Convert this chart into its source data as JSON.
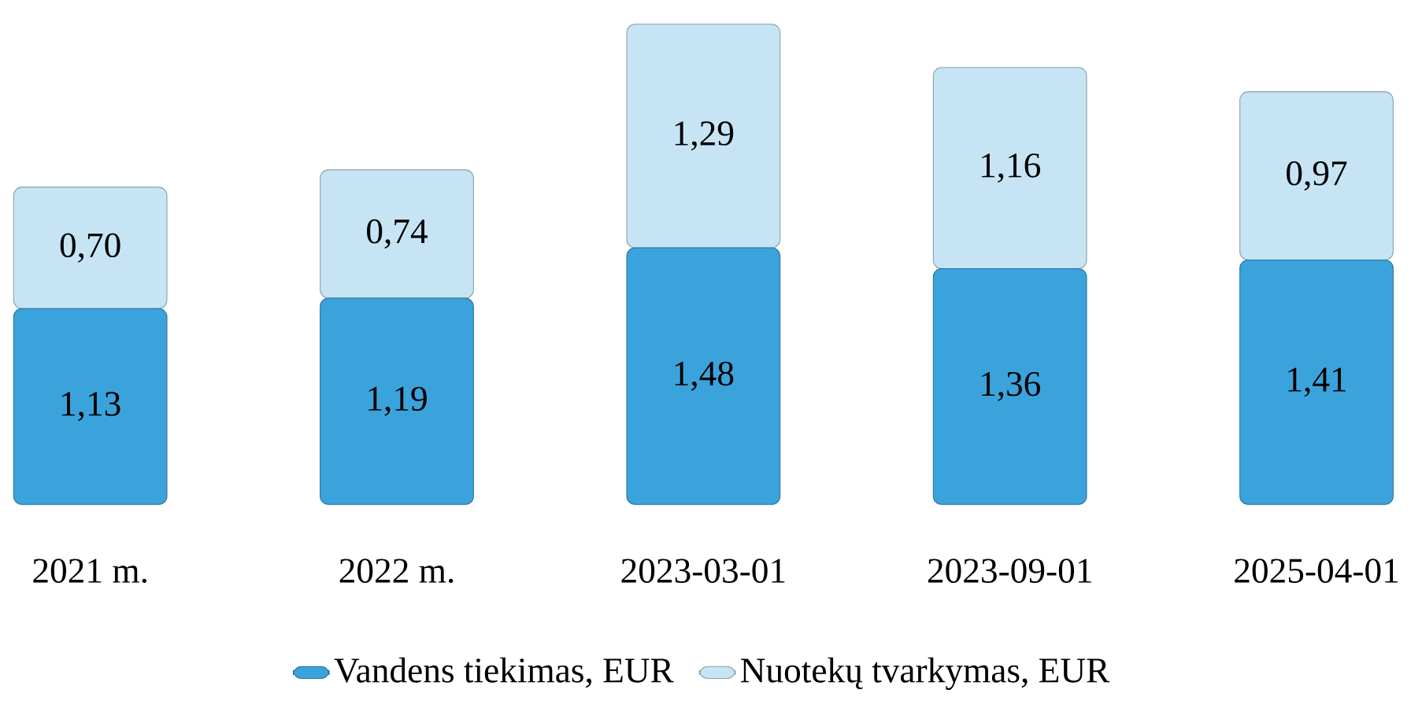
{
  "chart_data": {
    "type": "bar",
    "stacked": true,
    "legend": "bottom",
    "categories": [
      "2021 m.",
      "2022 m.",
      "2023-03-01",
      "2023-09-01",
      "2025-04-01"
    ],
    "series": [
      {
        "name": "Vandens tiekimas, EUR",
        "color": "#3ba3dc",
        "values": [
          1.13,
          1.19,
          1.48,
          1.36,
          1.41
        ],
        "value_labels": [
          "1,13",
          "1,19",
          "1,48",
          "1,36",
          "1,41"
        ]
      },
      {
        "name": "Nuotekų tvarkymas, EUR",
        "color": "#c6e4f4",
        "values": [
          0.7,
          0.74,
          1.29,
          1.16,
          0.97
        ],
        "value_labels": [
          "0,70",
          "0,74",
          "1,29",
          "1,16",
          "0,97"
        ]
      }
    ]
  }
}
